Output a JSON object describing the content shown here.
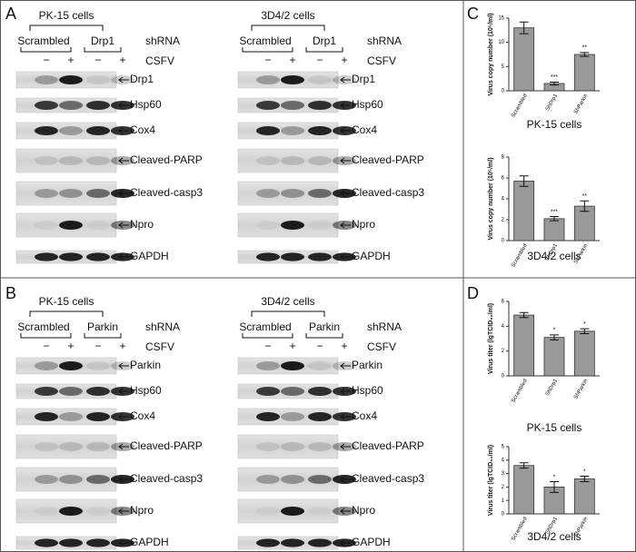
{
  "figure": {
    "panel_letters": [
      "A",
      "B",
      "C",
      "D"
    ]
  },
  "blots": [
    {
      "title": "PK-15 cells",
      "groups": [
        "Scrambled",
        "Drp1"
      ],
      "shrna_label": "shRNA",
      "treatment_label": "CSFV",
      "lanes": [
        "−",
        "+",
        "−",
        "+"
      ],
      "bands": [
        "Drp1",
        "Hsp60",
        "Cox4",
        "Cleaved-PARP",
        "Cleaved-casp3",
        "Npro",
        "GAPDH"
      ]
    },
    {
      "title": "3D4/2 cells",
      "groups": [
        "Scrambled",
        "Drp1"
      ],
      "shrna_label": "shRNA",
      "treatment_label": "CSFV",
      "lanes": [
        "−",
        "+",
        "−",
        "+"
      ],
      "bands": [
        "Drp1",
        "Hsp60",
        "Cox4",
        "Cleaved-PARP",
        "Cleaved-casp3",
        "Npro",
        "GAPDH"
      ]
    },
    {
      "title": "PK-15 cells",
      "groups": [
        "Scrambled",
        "Parkin"
      ],
      "shrna_label": "shRNA",
      "treatment_label": "CSFV",
      "lanes": [
        "−",
        "+",
        "−",
        "+"
      ],
      "bands": [
        "Parkin",
        "Hsp60",
        "Cox4",
        "Cleaved-PARP",
        "Cleaved-casp3",
        "Npro",
        "GAPDH"
      ]
    },
    {
      "title": "3D4/2 cells",
      "groups": [
        "Scrambled",
        "Parkin"
      ],
      "shrna_label": "shRNA",
      "treatment_label": "CSFV",
      "lanes": [
        "−",
        "+",
        "−",
        "+"
      ],
      "bands": [
        "Parkin",
        "Hsp60",
        "Cox4",
        "Cleaved-PARP",
        "Cleaved-casp3",
        "Npro",
        "GAPDH"
      ]
    }
  ],
  "chart_data": [
    {
      "type": "bar",
      "title": "PK-15 cells",
      "ylabel": "Virus copy number (10⁵/ml)",
      "categories": [
        "Scrambled",
        "ShDrp1",
        "ShParkin"
      ],
      "values": [
        13,
        1.5,
        7.5
      ],
      "errors": [
        1.2,
        0.3,
        0.4
      ],
      "annotations": [
        null,
        "***",
        "**"
      ],
      "ylim": [
        0,
        15
      ],
      "yticks": [
        0,
        5,
        10,
        15
      ],
      "color": "#999999"
    },
    {
      "type": "bar",
      "title": "3D4/2 cells",
      "ylabel": "Virus copy number (10⁵/ml)",
      "categories": [
        "Scrambled",
        "ShDrp1",
        "ShParkin"
      ],
      "values": [
        5.7,
        2.1,
        3.3
      ],
      "errors": [
        0.5,
        0.2,
        0.5
      ],
      "annotations": [
        null,
        "***",
        "**"
      ],
      "ylim": [
        0,
        8
      ],
      "yticks": [
        0,
        2,
        4,
        6,
        8
      ],
      "color": "#999999"
    },
    {
      "type": "bar",
      "title": "PK-15 cells",
      "ylabel": "Virus titer (lgTCID₅₀/ml)",
      "categories": [
        "Scrambled",
        "ShDrp1",
        "ShParkin"
      ],
      "values": [
        4.9,
        3.1,
        3.6
      ],
      "errors": [
        0.2,
        0.2,
        0.2
      ],
      "annotations": [
        null,
        "*",
        "*"
      ],
      "ylim": [
        0,
        6
      ],
      "yticks": [
        0,
        2,
        4,
        6
      ],
      "color": "#999999"
    },
    {
      "type": "bar",
      "title": "3D4/2 cells",
      "ylabel": "Virus titer (lgTCID₅₀/ml)",
      "categories": [
        "Scrambled",
        "ShDrp1",
        "ShParkin"
      ],
      "values": [
        3.6,
        2.0,
        2.6
      ],
      "errors": [
        0.2,
        0.4,
        0.2
      ],
      "annotations": [
        null,
        "*",
        "*"
      ],
      "ylim": [
        0,
        5
      ],
      "yticks": [
        0,
        1,
        2,
        3,
        4,
        5
      ],
      "color": "#999999"
    }
  ]
}
